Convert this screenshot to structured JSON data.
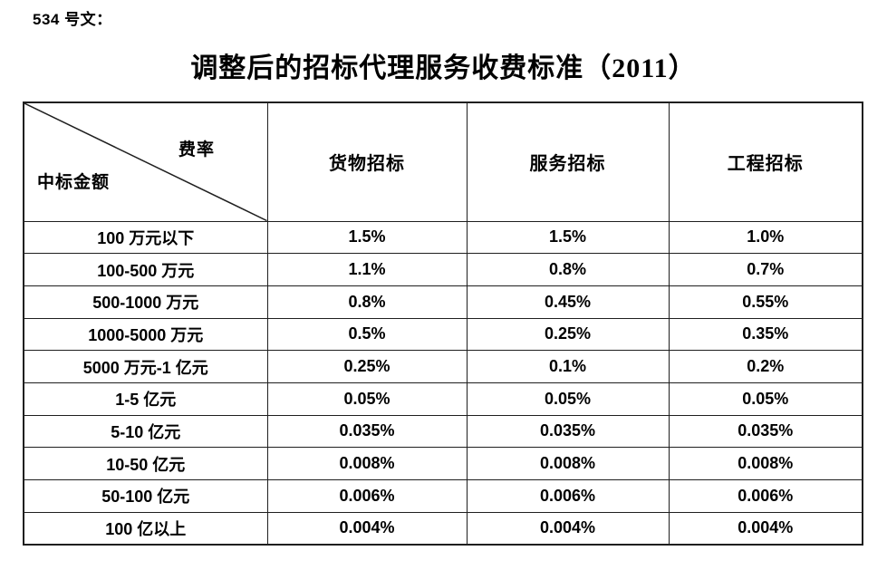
{
  "page": {
    "doc_label": "534 号文：",
    "title": "调整后的招标代理服务收费标准（2011）"
  },
  "table": {
    "corner": {
      "top_right_label": "费率",
      "bottom_left_label": "中标金额"
    },
    "columns": [
      "货物招标",
      "服务招标",
      "工程招标"
    ],
    "rows": [
      {
        "amount": "100 万元以下",
        "goods": "1.5%",
        "services": "1.5%",
        "engineering": "1.0%"
      },
      {
        "amount": "100-500 万元",
        "goods": "1.1%",
        "services": "0.8%",
        "engineering": "0.7%"
      },
      {
        "amount": "500-1000 万元",
        "goods": "0.8%",
        "services": "0.45%",
        "engineering": "0.55%"
      },
      {
        "amount": "1000-5000 万元",
        "goods": "0.5%",
        "services": "0.25%",
        "engineering": "0.35%"
      },
      {
        "amount": "5000 万元-1 亿元",
        "goods": "0.25%",
        "services": "0.1%",
        "engineering": "0.2%"
      },
      {
        "amount": "1-5 亿元",
        "goods": "0.05%",
        "services": "0.05%",
        "engineering": "0.05%"
      },
      {
        "amount": "5-10 亿元",
        "goods": "0.035%",
        "services": "0.035%",
        "engineering": "0.035%"
      },
      {
        "amount": "10-50 亿元",
        "goods": "0.008%",
        "services": "0.008%",
        "engineering": "0.008%"
      },
      {
        "amount": "50-100 亿元",
        "goods": "0.006%",
        "services": "0.006%",
        "engineering": "0.006%"
      },
      {
        "amount": "100 亿以上",
        "goods": "0.004%",
        "services": "0.004%",
        "engineering": "0.004%"
      }
    ]
  },
  "colors": {
    "text": "#000000",
    "border": "#1f1f1f",
    "background": "#ffffff"
  }
}
